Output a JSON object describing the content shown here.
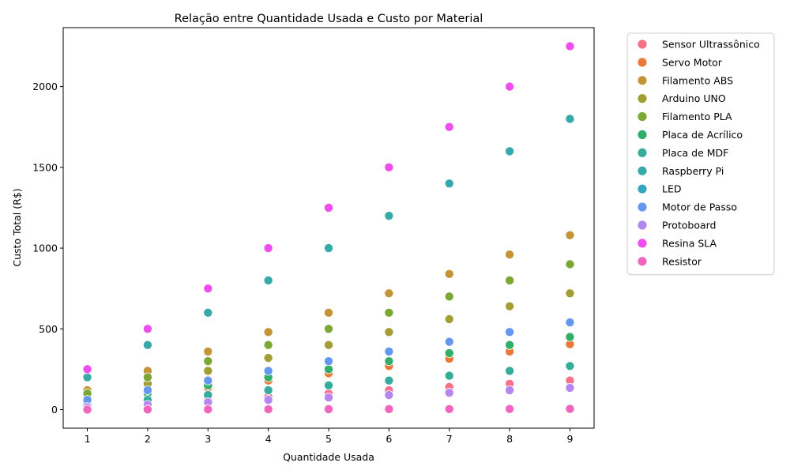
{
  "chart_data": {
    "type": "scatter",
    "title": "Relação entre Quantidade Usada e Custo por Material",
    "xlabel": "Quantidade Usada",
    "ylabel": "Custo Total (R$)",
    "xlim": [
      0.6,
      9.4
    ],
    "ylim": [
      -115,
      2365
    ],
    "xticks": [
      1,
      2,
      3,
      4,
      5,
      6,
      7,
      8,
      9
    ],
    "yticks": [
      0,
      500,
      1000,
      1500,
      2000
    ],
    "legend_position": "outside-right",
    "series": [
      {
        "name": "Sensor Ultrassônico",
        "color": "#f77189",
        "x": [
          1,
          2,
          3,
          4,
          5,
          6,
          7,
          8,
          9
        ],
        "y": [
          20,
          40,
          60,
          80,
          100,
          120,
          140,
          160,
          180
        ]
      },
      {
        "name": "Servo Motor",
        "color": "#e8793a",
        "x": [
          1,
          2,
          3,
          4,
          5,
          6,
          7,
          8,
          9
        ],
        "y": [
          45,
          90,
          135,
          180,
          225,
          270,
          315,
          360,
          405
        ]
      },
      {
        "name": "Filamento ABS",
        "color": "#c39537",
        "x": [
          1,
          2,
          3,
          4,
          5,
          6,
          7,
          8,
          9
        ],
        "y": [
          120,
          240,
          360,
          480,
          600,
          720,
          840,
          960,
          1080
        ]
      },
      {
        "name": "Arduino UNO",
        "color": "#a39e33",
        "x": [
          1,
          2,
          3,
          4,
          5,
          6,
          7,
          8,
          9
        ],
        "y": [
          80,
          160,
          240,
          320,
          400,
          480,
          560,
          640,
          720
        ]
      },
      {
        "name": "Filamento PLA",
        "color": "#7ba833",
        "x": [
          1,
          2,
          3,
          4,
          5,
          6,
          7,
          8,
          9
        ],
        "y": [
          100,
          200,
          300,
          400,
          500,
          600,
          700,
          800,
          900
        ]
      },
      {
        "name": "Placa de Acrílico",
        "color": "#33ae68",
        "x": [
          1,
          2,
          3,
          4,
          5,
          6,
          7,
          8,
          9
        ],
        "y": [
          50,
          100,
          150,
          200,
          250,
          300,
          350,
          400,
          450
        ]
      },
      {
        "name": "Placa de MDF",
        "color": "#35ac9c",
        "x": [
          1,
          2,
          3,
          4,
          5,
          6,
          7,
          8,
          9
        ],
        "y": [
          30,
          60,
          90,
          120,
          150,
          180,
          210,
          240,
          270
        ]
      },
      {
        "name": "Raspberry Pi",
        "color": "#36a9ab",
        "x": [
          1,
          2,
          3,
          4,
          5,
          6,
          7,
          8,
          9
        ],
        "y": [
          200,
          400,
          600,
          800,
          1000,
          1200,
          1400,
          1600,
          1800
        ]
      },
      {
        "name": "LED",
        "color": "#37a5c0",
        "x": [
          1,
          2,
          3,
          4,
          5,
          6,
          7,
          8,
          9
        ],
        "y": [
          1,
          2,
          3,
          4,
          5,
          6,
          7,
          8,
          9
        ]
      },
      {
        "name": "Motor de Passo",
        "color": "#6498f0",
        "x": [
          1,
          2,
          3,
          4,
          5,
          6,
          7,
          8,
          9
        ],
        "y": [
          60,
          120,
          180,
          240,
          300,
          360,
          420,
          480,
          540
        ]
      },
      {
        "name": "Protoboard",
        "color": "#b586f0",
        "x": [
          1,
          2,
          3,
          4,
          5,
          6,
          7,
          8,
          9
        ],
        "y": [
          15,
          30,
          45,
          60,
          75,
          90,
          105,
          120,
          135
        ]
      },
      {
        "name": "Resina SLA",
        "color": "#ef4ded",
        "x": [
          1,
          2,
          3,
          4,
          5,
          6,
          7,
          8,
          9
        ],
        "y": [
          250,
          500,
          750,
          1000,
          1250,
          1500,
          1750,
          2000,
          2250
        ]
      },
      {
        "name": "Resistor",
        "color": "#f265be",
        "x": [
          1,
          2,
          3,
          4,
          5,
          6,
          7,
          8,
          9
        ],
        "y": [
          0.5,
          1,
          1.5,
          2,
          2.5,
          3,
          3.5,
          4,
          4.5
        ]
      }
    ]
  }
}
